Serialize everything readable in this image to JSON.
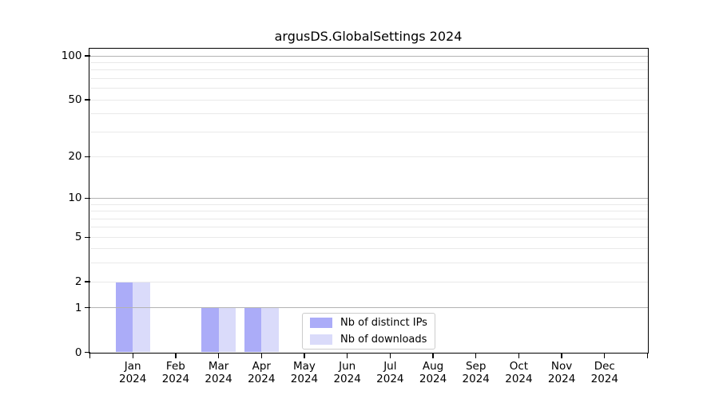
{
  "title": "argusDS.GlobalSettings 2024",
  "chart_data": {
    "type": "bar",
    "title": "argusDS.GlobalSettings 2024",
    "categories": [
      "Jan",
      "Feb",
      "Mar",
      "Apr",
      "May",
      "Jun",
      "Jul",
      "Aug",
      "Sep",
      "Oct",
      "Nov",
      "Dec"
    ],
    "year_label": "2024",
    "series": [
      {
        "name": "Nb of distinct IPs",
        "color": "#abacf8",
        "values": [
          2,
          0,
          1,
          1,
          0,
          0,
          0,
          0,
          0,
          0,
          0,
          0
        ]
      },
      {
        "name": "Nb of downloads",
        "color": "#dadbfa",
        "values": [
          2,
          0,
          1,
          1,
          0,
          0,
          0,
          0,
          0,
          0,
          0,
          0
        ]
      }
    ],
    "yscale": "log1p",
    "ylim": [
      0,
      112
    ],
    "ytick_values": [
      0,
      1,
      2,
      5,
      10,
      20,
      50,
      100
    ],
    "grid_major_values": [
      1,
      10,
      100
    ],
    "grid_minor_values": [
      2,
      3,
      4,
      5,
      6,
      7,
      8,
      9,
      20,
      30,
      40,
      50,
      60,
      70,
      80,
      90
    ],
    "grid": "both",
    "legend_position": "bottom-center",
    "colors": {
      "grid_major": "#b3b3b3",
      "grid_minor": "#e9e9e9",
      "axis": "#000000",
      "background": "#ffffff"
    }
  }
}
